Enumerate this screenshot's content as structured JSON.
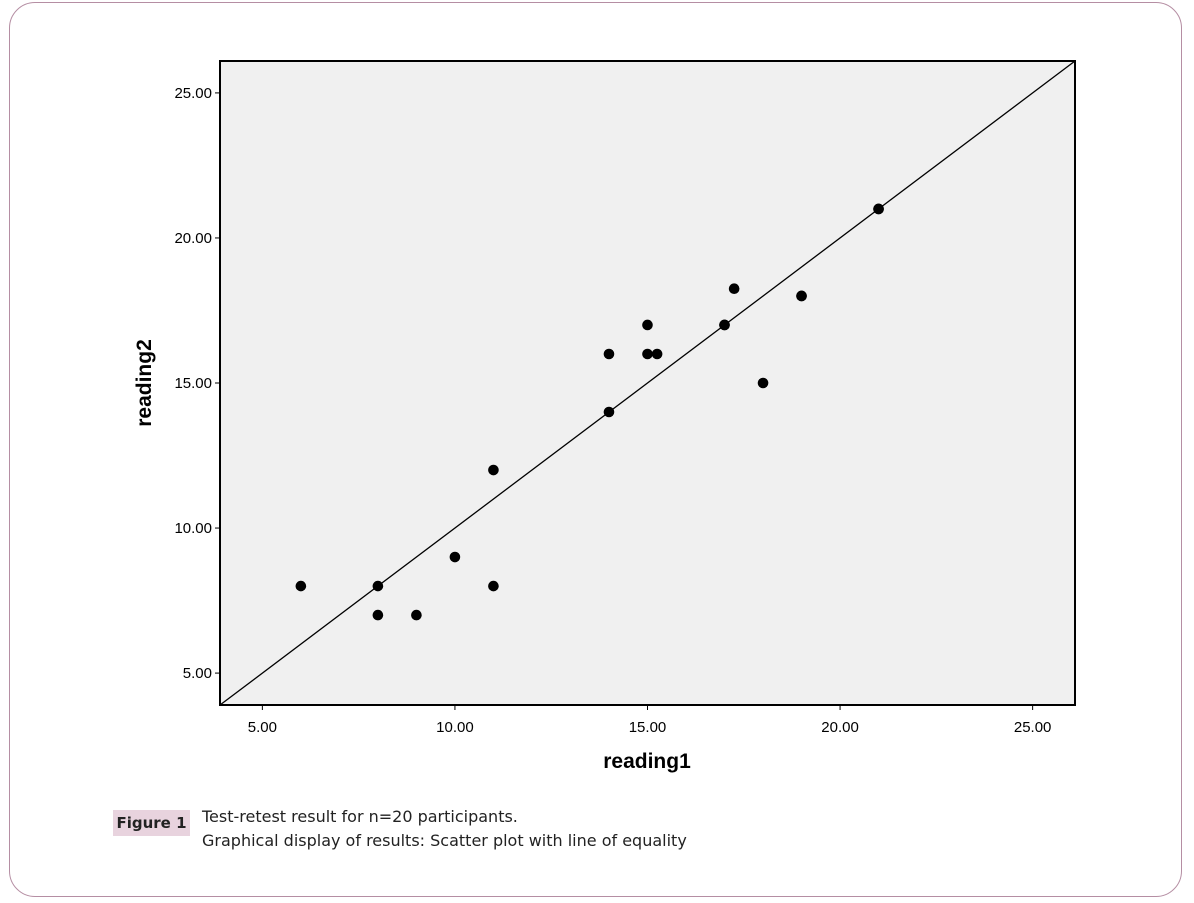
{
  "chart_data": {
    "type": "scatter",
    "xlabel": "reading1",
    "ylabel": "reading2",
    "xlim": [
      3.9,
      26.1
    ],
    "ylim": [
      3.9,
      26.1
    ],
    "xticks": [
      "5.00",
      "10.00",
      "15.00",
      "20.00",
      "25.00"
    ],
    "yticks": [
      "5.00",
      "10.00",
      "15.00",
      "20.00",
      "25.00"
    ],
    "reference_line": "y = x (line of equality)",
    "grid": false,
    "series": [
      {
        "points": [
          {
            "x": 6,
            "y": 8
          },
          {
            "x": 8,
            "y": 8
          },
          {
            "x": 8,
            "y": 7
          },
          {
            "x": 9,
            "y": 7
          },
          {
            "x": 10,
            "y": 9
          },
          {
            "x": 11,
            "y": 12
          },
          {
            "x": 11,
            "y": 8
          },
          {
            "x": 14,
            "y": 16
          },
          {
            "x": 14,
            "y": 14
          },
          {
            "x": 15,
            "y": 17
          },
          {
            "x": 15,
            "y": 16
          },
          {
            "x": 15.25,
            "y": 16
          },
          {
            "x": 17,
            "y": 17
          },
          {
            "x": 17.25,
            "y": 18.25
          },
          {
            "x": 18,
            "y": 15
          },
          {
            "x": 19,
            "y": 18
          },
          {
            "x": 19,
            "y": 18
          },
          {
            "x": 21,
            "y": 21
          },
          {
            "x": 21,
            "y": 21
          },
          {
            "x": 17,
            "y": 17
          }
        ]
      }
    ],
    "colors": {
      "plot_background": "#f0f0f0",
      "marker": "#000000",
      "line": "#000000"
    }
  },
  "caption": {
    "badge": "Figure 1",
    "line1": "Test-retest result for n=20 participants.",
    "line2": "Graphical display of results: Scatter plot with line of equality"
  },
  "colors": {
    "frame_border": "#b58ea3",
    "badge_background": "#e8d3de"
  }
}
